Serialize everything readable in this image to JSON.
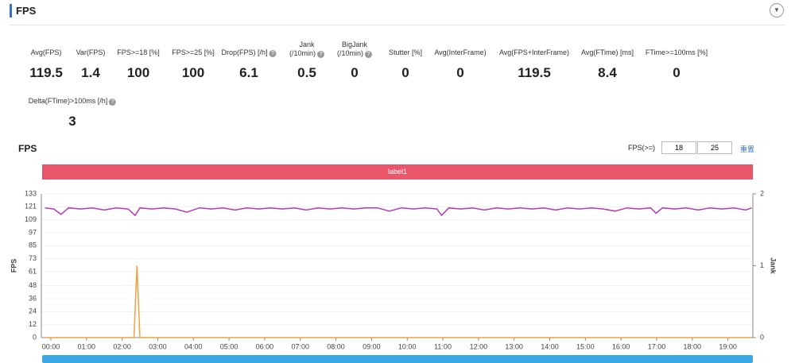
{
  "header": {
    "title": "FPS"
  },
  "stats": [
    {
      "label": "Avg(FPS)",
      "value": 119.5
    },
    {
      "label": "Var(FPS)",
      "value": 1.4
    },
    {
      "label": "FPS>=18 [%]",
      "value": 100
    },
    {
      "label": "FPS>=25 [%]",
      "value": 100
    },
    {
      "label": "Drop(FPS) [/h]",
      "value": 6.1,
      "help": true
    },
    {
      "label": "Jank\n(/10min)",
      "value": 0.5,
      "help": true
    },
    {
      "label": "BigJank\n(/10min)",
      "value": 0,
      "help": true
    },
    {
      "label": "Stutter [%]",
      "value": 0
    },
    {
      "label": "Avg(InterFrame)",
      "value": 0
    },
    {
      "label": "Avg(FPS+InterFrame)",
      "value": 119.5
    },
    {
      "label": "Avg(FTime) [ms]",
      "value": 8.4
    },
    {
      "label": "FTime>=100ms [%]",
      "value": 0
    },
    {
      "label": "Delta(FTime)>100ms [/h]",
      "value": 3,
      "help": true
    }
  ],
  "controls": {
    "label": "FPS(>=)",
    "input1": 18,
    "input2": 25,
    "reset": "重置"
  },
  "chart_data": {
    "type": "line",
    "title": "FPS",
    "band_label": "label1",
    "y_label": "FPS",
    "y2_label": "Jank",
    "grid": true,
    "xlim": [
      -16,
      1182
    ],
    "xticks": [
      {
        "value": 0,
        "label": "00:00"
      },
      {
        "value": 60,
        "label": "01:00"
      },
      {
        "value": 120,
        "label": "02:00"
      },
      {
        "value": 180,
        "label": "03:00"
      },
      {
        "value": 240,
        "label": "04:00"
      },
      {
        "value": 300,
        "label": "05:00"
      },
      {
        "value": 360,
        "label": "06:00"
      },
      {
        "value": 420,
        "label": "07:00"
      },
      {
        "value": 480,
        "label": "08:00"
      },
      {
        "value": 540,
        "label": "09:00"
      },
      {
        "value": 600,
        "label": "10:00"
      },
      {
        "value": 660,
        "label": "11:00"
      },
      {
        "value": 720,
        "label": "12:00"
      },
      {
        "value": 780,
        "label": "13:00"
      },
      {
        "value": 840,
        "label": "14:00"
      },
      {
        "value": 900,
        "label": "15:00"
      },
      {
        "value": 960,
        "label": "16:00"
      },
      {
        "value": 1020,
        "label": "17:00"
      },
      {
        "value": 1080,
        "label": "18:00"
      },
      {
        "value": 1140,
        "label": "19:00"
      }
    ],
    "ylim": [
      0,
      133
    ],
    "yticks": [
      0,
      12,
      24,
      36,
      48,
      61,
      73,
      85,
      97,
      109,
      121,
      133
    ],
    "y2lim": [
      0,
      2
    ],
    "y2ticks": [
      0,
      1,
      2
    ],
    "series": [
      {
        "name": "FPS",
        "color": "#b23cb4",
        "x": [
          -10,
          5,
          17,
          30,
          50,
          70,
          90,
          110,
          130,
          142,
          150,
          170,
          190,
          210,
          229,
          250,
          270,
          290,
          310,
          330,
          350,
          370,
          390,
          410,
          430,
          450,
          470,
          490,
          510,
          530,
          550,
          570,
          590,
          610,
          630,
          650,
          658,
          670,
          690,
          710,
          730,
          750,
          770,
          790,
          810,
          830,
          850,
          870,
          890,
          910,
          930,
          950,
          970,
          990,
          1010,
          1019,
          1030,
          1050,
          1070,
          1090,
          1110,
          1130,
          1150,
          1170,
          1180
        ],
        "values": [
          120,
          119,
          114,
          120,
          119,
          120,
          118,
          120,
          119,
          113,
          120,
          119,
          120,
          119,
          116,
          120,
          119,
          120,
          118,
          120,
          119,
          120,
          119,
          120,
          118,
          120,
          119,
          120,
          119,
          120,
          120,
          117,
          120,
          119,
          120,
          119,
          113,
          120,
          119,
          120,
          118,
          120,
          119,
          120,
          119,
          120,
          118,
          120,
          119,
          120,
          119,
          117,
          120,
          119,
          120,
          115,
          120,
          119,
          120,
          118,
          120,
          119,
          120,
          118,
          120
        ]
      },
      {
        "name": "Jank",
        "axis": "y2",
        "color": "#f0a040",
        "x": [
          -10,
          140,
          145,
          150,
          1180
        ],
        "values": [
          0,
          0,
          1,
          0,
          0
        ]
      }
    ]
  }
}
